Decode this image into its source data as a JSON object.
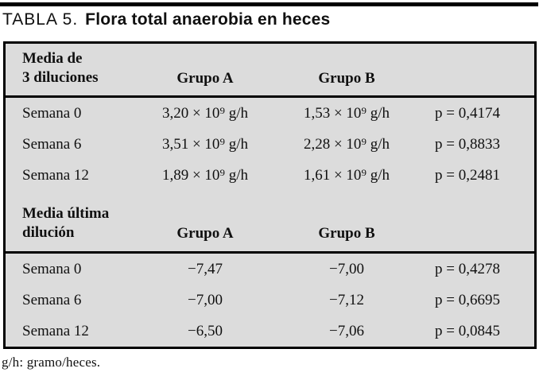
{
  "caption": {
    "number": "TABLA 5.",
    "title": "Flora total anaerobia en heces"
  },
  "colors": {
    "table_background": "#dcdcdc",
    "rule": "#000000",
    "text": "#101010"
  },
  "sections": [
    {
      "header": {
        "label_line1": "Media de",
        "label_line2": "3 diluciones",
        "group_a": "Grupo A",
        "group_b": "Grupo B"
      },
      "rows": [
        {
          "label": "Semana 0",
          "group_a": "3,20 × 10⁹ g/h",
          "group_b": "1,53 × 10⁹ g/h",
          "p": "p = 0,4174"
        },
        {
          "label": "Semana 6",
          "group_a": "3,51 × 10⁹ g/h",
          "group_b": "2,28 × 10⁹ g/h",
          "p": "p = 0,8833"
        },
        {
          "label": "Semana 12",
          "group_a": "1,89 × 10⁹ g/h",
          "group_b": "1,61 × 10⁹ g/h",
          "p": "p = 0,2481"
        }
      ]
    },
    {
      "header": {
        "label_line1": "Media última",
        "label_line2": "dilución",
        "group_a": "Grupo A",
        "group_b": "Grupo B"
      },
      "rows": [
        {
          "label": "Semana 0",
          "group_a": "−7,47",
          "group_b": "−7,00",
          "p": "p = 0,4278"
        },
        {
          "label": "Semana 6",
          "group_a": "−7,00",
          "group_b": "−7,12",
          "p": "p = 0,6695"
        },
        {
          "label": "Semana 12",
          "group_a": "−6,50",
          "group_b": "−7,06",
          "p": "p = 0,0845"
        }
      ]
    }
  ],
  "footnote": "g/h: gramo/heces."
}
